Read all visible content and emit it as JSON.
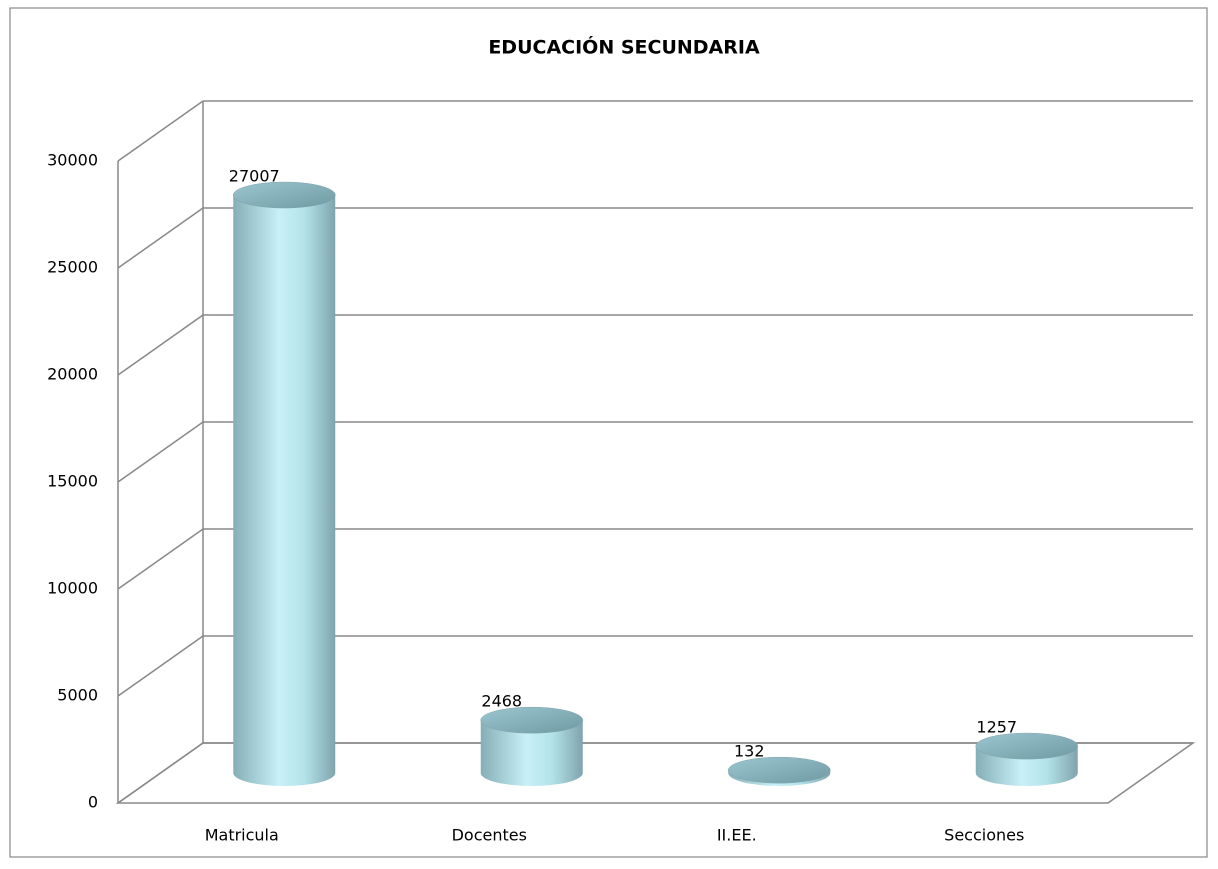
{
  "chart_data": {
    "type": "bar3d",
    "title": "EDUCACIÓN SECUNDARIA",
    "categories": [
      "Matricula",
      "Docentes",
      "II.EE.",
      "Secciones"
    ],
    "values": [
      27007,
      2468,
      132,
      1257
    ],
    "color": "#a9dce6",
    "ylim": [
      0,
      30000
    ],
    "yticks": [
      0,
      5000,
      10000,
      15000,
      20000,
      25000,
      30000
    ],
    "grid": true
  }
}
